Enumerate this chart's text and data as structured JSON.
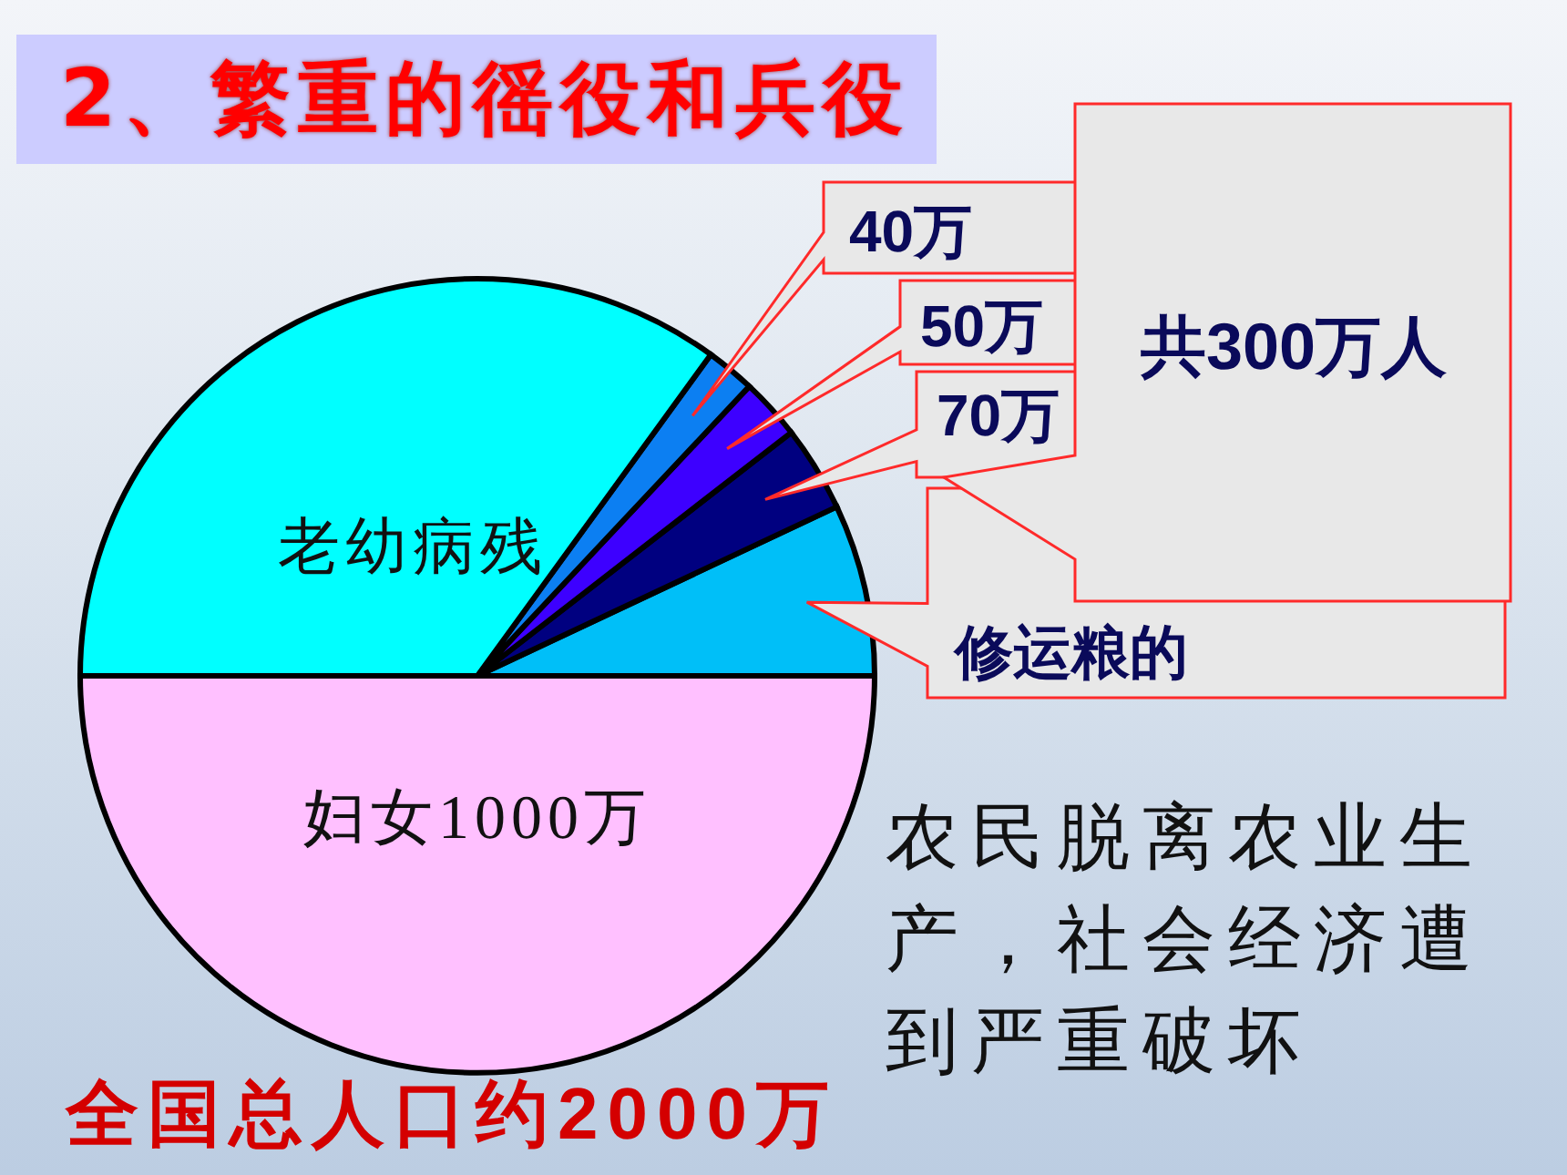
{
  "chart_data": {
    "type": "pie",
    "title": "2、繁重的徭役和兵役",
    "categories": [
      "修运粮的",
      null,
      null,
      null,
      "老幼病残",
      "妇女"
    ],
    "values": [
      140,
      70,
      50,
      40,
      700,
      1000
    ],
    "value_labels": [
      null,
      "70万",
      "50万",
      "40万",
      null,
      "1000万"
    ],
    "colors": [
      "#00bff8",
      "#000080",
      "#3d00ff",
      "#0c7ff2",
      "#00ffff",
      "#ffc0ff"
    ],
    "annotations": [
      "共300万人",
      "农民脱离农业生产，社会经济遭到严重破坏",
      "全国总人口约2000万"
    ]
  }
}
